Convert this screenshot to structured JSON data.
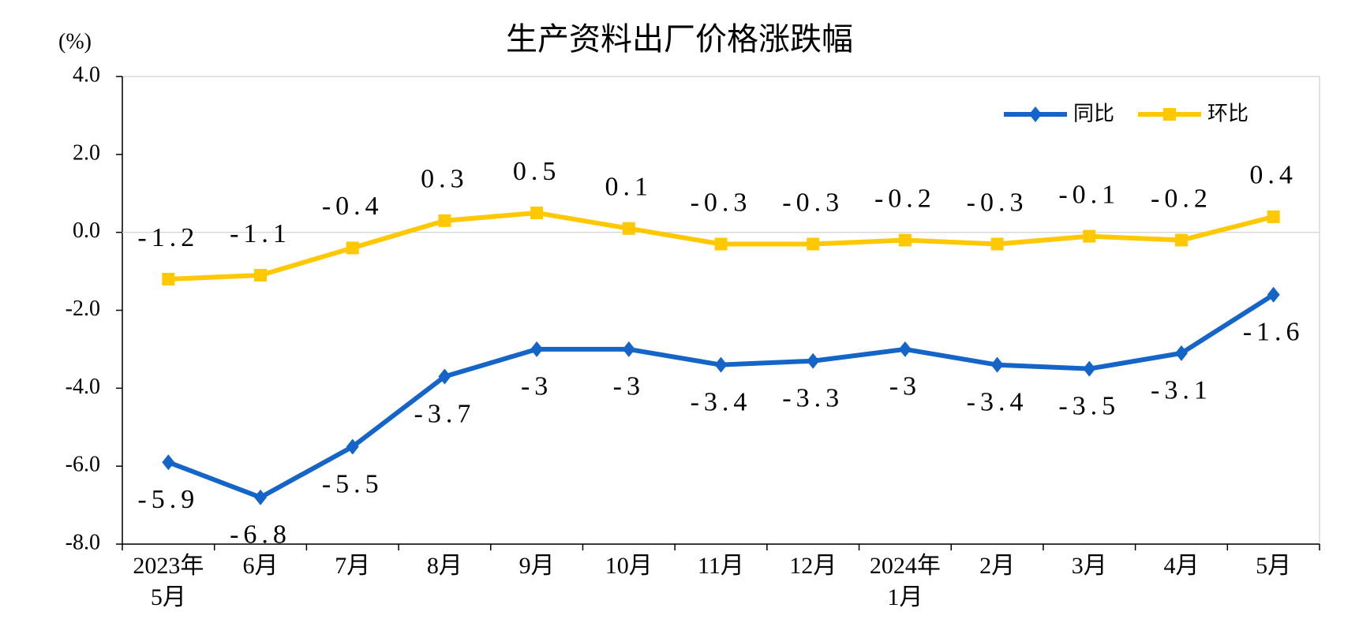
{
  "chart_data": {
    "type": "line",
    "title": "生产资料出厂价格涨跌幅",
    "y_unit": "(%)",
    "categories": [
      "2023年\n5月",
      "6月",
      "7月",
      "8月",
      "9月",
      "10月",
      "11月",
      "12月",
      "2024年\n1月",
      "2月",
      "3月",
      "4月",
      "5月"
    ],
    "series": [
      {
        "name": "同比",
        "color": "#1565c8",
        "marker": "diamond",
        "label_position": "below",
        "values": [
          -5.9,
          -6.8,
          -5.5,
          -3.7,
          -3.0,
          -3.0,
          -3.4,
          -3.3,
          -3.0,
          -3.4,
          -3.5,
          -3.1,
          -1.6
        ]
      },
      {
        "name": "环比",
        "color": "#ffc800",
        "marker": "square",
        "label_position": "above",
        "values": [
          -1.2,
          -1.1,
          -0.4,
          0.3,
          0.5,
          0.1,
          -0.3,
          -0.3,
          -0.2,
          -0.3,
          -0.1,
          -0.2,
          0.4
        ]
      }
    ],
    "ylim": [
      -8,
      4
    ],
    "yticks": [
      {
        "value": -8,
        "label": "-8.0"
      },
      {
        "value": -6,
        "label": "-6.0"
      },
      {
        "value": -4,
        "label": "-4.0"
      },
      {
        "value": -2,
        "label": "-2.0"
      },
      {
        "value": 0,
        "label": "0.0"
      },
      {
        "value": 2,
        "label": "2.0"
      },
      {
        "value": 4,
        "label": "4.0"
      }
    ],
    "zero_line": true,
    "legend": "upper right"
  }
}
